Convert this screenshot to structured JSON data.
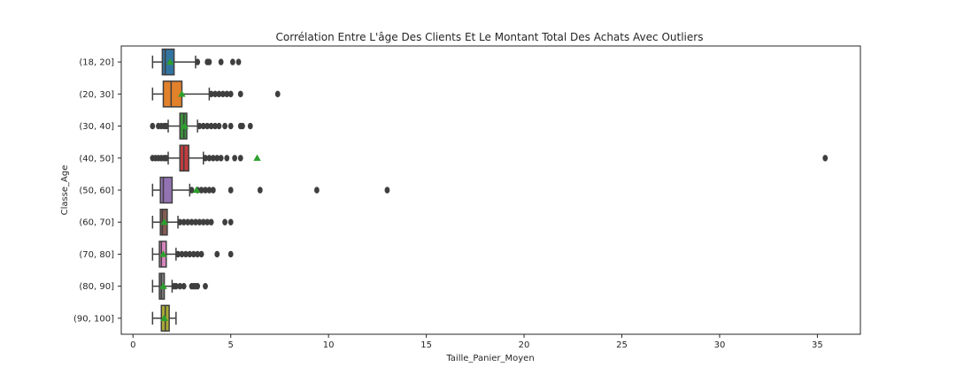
{
  "chart_data": {
    "type": "boxplot",
    "orientation": "horizontal",
    "title": "Corrélation Entre L'âge Des Clients Et Le Montant Total Des Achats Avec Outliers",
    "xlabel": "Taille_Panier_Moyen",
    "ylabel": "Classe_Age",
    "xlim": [
      -0.6,
      37.2
    ],
    "xticks": [
      0,
      5,
      10,
      15,
      20,
      25,
      30,
      35
    ],
    "grid": false,
    "legend": "none",
    "mean_marker_color": "#2ca02c",
    "outlier_color": "#3f3f3f",
    "categories": [
      "(18, 20]",
      "(20, 30]",
      "(30, 40]",
      "(40, 50]",
      "(50, 60]",
      "(60, 70]",
      "(70, 80]",
      "(80, 90]",
      "(90, 100]"
    ],
    "boxes": [
      {
        "category": "(18, 20]",
        "color": "#3274a1",
        "whisker_low": 1.0,
        "q1": 1.5,
        "median": 1.65,
        "q3": 2.1,
        "whisker_high": 3.2,
        "mean": 1.9,
        "outliers": [
          3.3,
          3.8,
          3.9,
          4.5,
          5.1,
          5.4
        ]
      },
      {
        "category": "(20, 30]",
        "color": "#e1812c",
        "whisker_low": 1.0,
        "q1": 1.55,
        "median": 1.95,
        "q3": 2.5,
        "whisker_high": 3.9,
        "mean": 2.5,
        "outliers": [
          4.0,
          4.2,
          4.4,
          4.6,
          4.8,
          5.0,
          5.5,
          7.4
        ]
      },
      {
        "category": "(30, 40]",
        "color": "#3a923a",
        "whisker_low": 1.8,
        "q1": 2.4,
        "median": 2.6,
        "q3": 2.75,
        "whisker_high": 3.3,
        "mean": 2.65,
        "outliers": [
          1.0,
          1.3,
          1.45,
          1.6,
          1.7,
          3.4,
          3.6,
          3.8,
          4.0,
          4.2,
          4.4,
          4.7,
          5.0,
          5.5,
          5.6,
          6.0
        ]
      },
      {
        "category": "(40, 50]",
        "color": "#c03d3e",
        "whisker_low": 1.8,
        "q1": 2.4,
        "median": 2.6,
        "q3": 2.85,
        "whisker_high": 3.6,
        "mean": 6.35,
        "outliers": [
          1.0,
          1.15,
          1.3,
          1.45,
          1.6,
          1.7,
          3.7,
          3.9,
          4.1,
          4.3,
          4.5,
          4.8,
          5.2,
          5.5,
          35.4
        ]
      },
      {
        "category": "(50, 60]",
        "color": "#9372b2",
        "whisker_low": 1.0,
        "q1": 1.4,
        "median": 1.55,
        "q3": 2.0,
        "whisker_high": 2.9,
        "mean": 3.25,
        "outliers": [
          3.0,
          3.3,
          3.5,
          3.7,
          3.9,
          4.1,
          5.0,
          6.5,
          9.4,
          13.0
        ]
      },
      {
        "category": "(60, 70]",
        "color": "#845b53",
        "whisker_low": 1.0,
        "q1": 1.4,
        "median": 1.5,
        "q3": 1.75,
        "whisker_high": 2.3,
        "mean": 1.6,
        "outliers": [
          2.4,
          2.6,
          2.8,
          3.0,
          3.2,
          3.4,
          3.6,
          3.8,
          4.0,
          4.7,
          5.0
        ]
      },
      {
        "category": "(70, 80]",
        "color": "#d684bd",
        "whisker_low": 1.0,
        "q1": 1.35,
        "median": 1.45,
        "q3": 1.7,
        "whisker_high": 2.2,
        "mean": 1.55,
        "outliers": [
          2.3,
          2.5,
          2.7,
          2.9,
          3.1,
          3.3,
          3.5,
          4.3,
          5.0
        ]
      },
      {
        "category": "(80, 90]",
        "color": "#7f7f7f",
        "whisker_low": 1.0,
        "q1": 1.35,
        "median": 1.45,
        "q3": 1.6,
        "whisker_high": 2.0,
        "mean": 1.55,
        "outliers": [
          2.1,
          2.2,
          2.4,
          2.6,
          3.0,
          3.1,
          3.2,
          3.3,
          3.7
        ]
      },
      {
        "category": "(90, 100]",
        "color": "#a9aa35",
        "whisker_low": 1.0,
        "q1": 1.45,
        "median": 1.65,
        "q3": 1.85,
        "whisker_high": 2.2,
        "mean": 1.6,
        "outliers": []
      }
    ]
  }
}
